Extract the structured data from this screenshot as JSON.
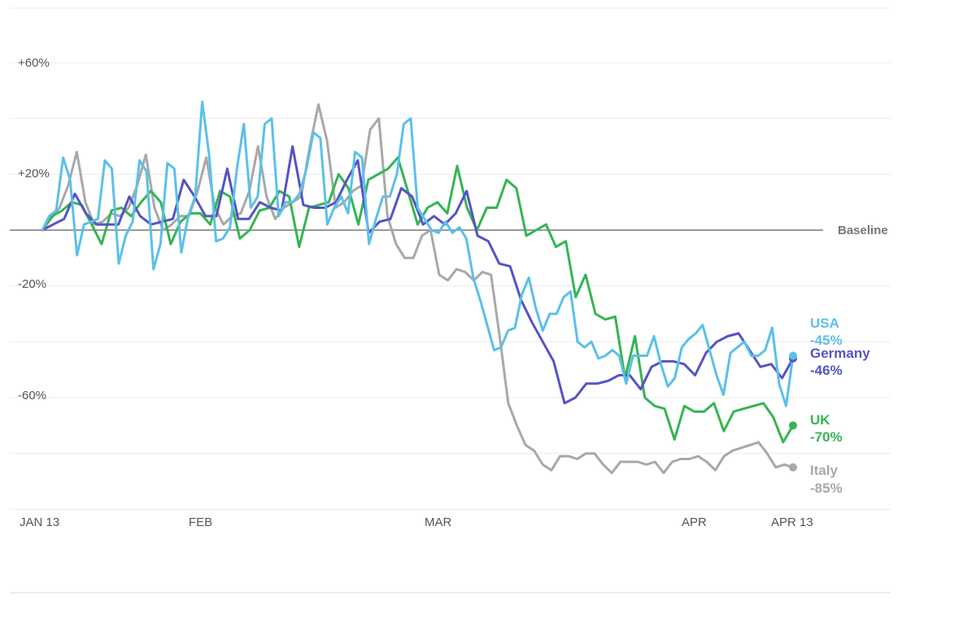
{
  "chart_data": {
    "type": "line",
    "title": "",
    "xlabel": "",
    "ylabel": "",
    "ylim": [
      -100,
      80
    ],
    "x_domain": [
      0,
      91
    ],
    "x_ticks": [
      {
        "label": "JAN 13",
        "x": 0
      },
      {
        "label": "FEB",
        "x": 19
      },
      {
        "label": "MAR",
        "x": 48
      },
      {
        "label": "APR",
        "x": 79
      },
      {
        "label": "APR 13",
        "x": 91
      }
    ],
    "y_ticks": [
      {
        "label": "+60%",
        "value": 60
      },
      {
        "label": "+20%",
        "value": 20
      },
      {
        "label": "-20%",
        "value": -20
      },
      {
        "label": "-60%",
        "value": -60
      }
    ],
    "gridlines": [
      60,
      40,
      20,
      0,
      -20,
      -40,
      -60,
      -80,
      -100
    ],
    "baseline": {
      "label": "Baseline",
      "value": 0
    },
    "series": [
      {
        "name": "Italy",
        "value_label": "-85%",
        "color": "#a8a8a8",
        "values": [
          0,
          4,
          8,
          16,
          28,
          10,
          2,
          3,
          6,
          5,
          8,
          16,
          27,
          8,
          0,
          2,
          5,
          5,
          14,
          26,
          8,
          2,
          5,
          6,
          14,
          30,
          12,
          4,
          8,
          10,
          12,
          30,
          45,
          32,
          8,
          10,
          14,
          16,
          36,
          40,
          5,
          -5,
          -10,
          -10,
          -2,
          0,
          -16,
          -18,
          -14,
          -15,
          -18,
          -15,
          -16,
          -38,
          -62,
          -70,
          -77,
          -79,
          -84,
          -86,
          -81,
          -81,
          -82,
          -80,
          -80,
          -84,
          -87,
          -83,
          -83,
          -83,
          -84,
          -83,
          -87,
          -83,
          -82,
          -82,
          -81,
          -83,
          -86,
          -81,
          -79,
          -78,
          -77,
          -76,
          -80,
          -85,
          -84,
          -85
        ]
      },
      {
        "name": "UK",
        "value_label": "-70%",
        "color": "#34b552",
        "values": [
          0,
          5,
          7,
          10,
          9,
          2,
          -5,
          7,
          8,
          5,
          10,
          14,
          10,
          -5,
          3,
          6,
          6,
          2,
          14,
          12,
          -3,
          0,
          7,
          8,
          14,
          12,
          -6,
          8,
          9,
          10,
          20,
          15,
          2,
          18,
          20,
          22,
          26,
          14,
          2,
          8,
          10,
          6,
          23,
          8,
          0,
          8,
          8,
          18,
          15,
          -2,
          0,
          2,
          -6,
          -4,
          -24,
          -16,
          -30,
          -32,
          -31,
          -53,
          -38,
          -60,
          -63,
          -64,
          -75,
          -63,
          -65,
          -65,
          -62,
          -72,
          -65,
          -64,
          -63,
          -62,
          -67,
          -76,
          -70
        ]
      },
      {
        "name": "Germany",
        "value_label": "-46%",
        "color": "#5553c5",
        "values": [
          0,
          2,
          4,
          13,
          6,
          2,
          2,
          2,
          12,
          5,
          2,
          3,
          4,
          18,
          12,
          5,
          5,
          22,
          4,
          4,
          10,
          8,
          7,
          30,
          9,
          8,
          8,
          10,
          18,
          25,
          -1,
          3,
          4,
          15,
          12,
          2,
          5,
          2,
          6,
          14,
          -2,
          -4,
          -12,
          -13,
          -25,
          -33,
          -40,
          -47,
          -62,
          -60,
          -55,
          -55,
          -54,
          -52,
          -52,
          -57,
          -49,
          -47,
          -47,
          -48,
          -52,
          -44,
          -40,
          -38,
          -37,
          -43,
          -49,
          -48,
          -53,
          -46
        ]
      },
      {
        "name": "USA",
        "value_label": "-45%",
        "color": "#5bc0ea",
        "values": [
          0,
          5,
          7,
          26,
          18,
          -9,
          2,
          3,
          4,
          25,
          22,
          -12,
          -2,
          3,
          25,
          21,
          -14,
          -5,
          24,
          22,
          -8,
          5,
          12,
          46,
          27,
          -4,
          -3,
          1,
          22,
          38,
          8,
          12,
          38,
          40,
          5,
          10,
          10,
          13,
          22,
          35,
          33,
          2,
          8,
          12,
          6,
          28,
          26,
          -5,
          4,
          12,
          12,
          20,
          38,
          40,
          8,
          4,
          0,
          -1,
          3,
          -1,
          1,
          -3,
          -17,
          -25,
          -34,
          -43,
          -42,
          -36,
          -35,
          -23,
          -17,
          -28,
          -36,
          -30,
          -30,
          -24,
          -22,
          -40,
          -42,
          -40,
          -46,
          -45,
          -43,
          -45,
          -55,
          -45,
          -45,
          -45,
          -38,
          -48,
          -56,
          -53,
          -42,
          -39,
          -37,
          -34,
          -43,
          -52,
          -59,
          -44,
          -42,
          -40,
          -45,
          -45,
          -43,
          -35,
          -55,
          -63,
          -45
        ]
      }
    ]
  }
}
